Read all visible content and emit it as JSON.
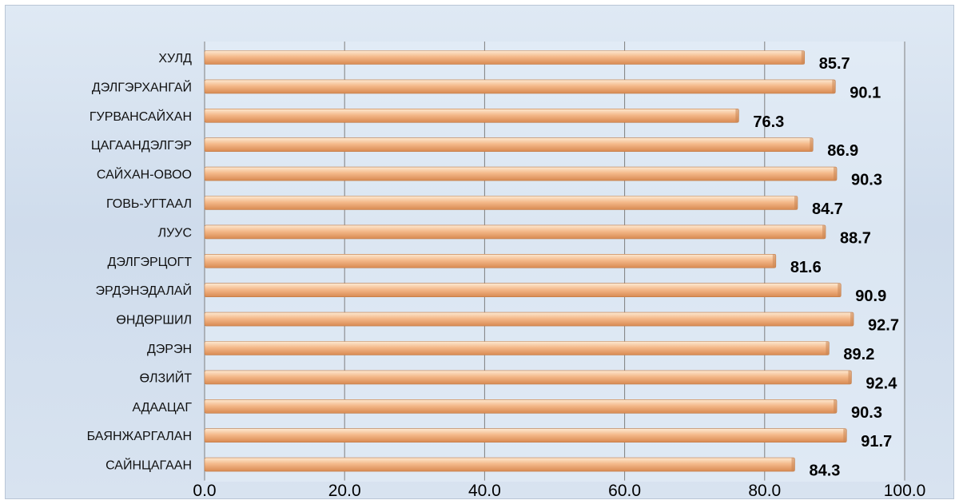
{
  "chart_data": {
    "type": "bar",
    "orientation": "horizontal",
    "title": "",
    "xlabel": "",
    "ylabel": "",
    "categories": [
      "ХУЛД",
      "ДЭЛГЭРХАНГАЙ",
      "ГУРВАНСАЙХАН",
      "ЦАГААНДЭЛГЭР",
      "САЙХАН-ОВОО",
      "ГОВЬ-УГТААЛ",
      "ЛУУС",
      "ДЭЛГЭРЦОГТ",
      "ЭРДЭНЭДАЛАЙ",
      "ӨНДӨРШИЛ",
      "ДЭРЭН",
      "ӨЛЗИЙТ",
      "АДААЦАГ",
      "БАЯНЖАРГАЛАН",
      "САЙНЦАГААН"
    ],
    "values": [
      85.7,
      90.1,
      76.3,
      86.9,
      90.3,
      84.7,
      88.7,
      81.6,
      90.9,
      92.7,
      89.2,
      92.4,
      90.3,
      91.7,
      84.3
    ],
    "value_labels": [
      "85.7",
      "90.1",
      "76.3",
      "86.9",
      "90.3",
      "84.7",
      "88.7",
      "81.6",
      "90.9",
      "92.7",
      "89.2",
      "92.4",
      "90.3",
      "91.7",
      "84.3"
    ],
    "xlim": [
      0,
      100
    ],
    "x_ticks": [
      0,
      20,
      40,
      60,
      80,
      100
    ],
    "x_tick_labels": [
      "0.0",
      "20.0",
      "40.0",
      "60.0",
      "80.0",
      "100.0"
    ],
    "grid": "vertical",
    "legend": "none",
    "colors": {
      "bar_light": "#fde9d2",
      "bar_mid": "#f4b98a",
      "bar_dark": "#d88a52",
      "plot_area": "#e6eef7",
      "gridline": "#7f7f7f"
    }
  }
}
